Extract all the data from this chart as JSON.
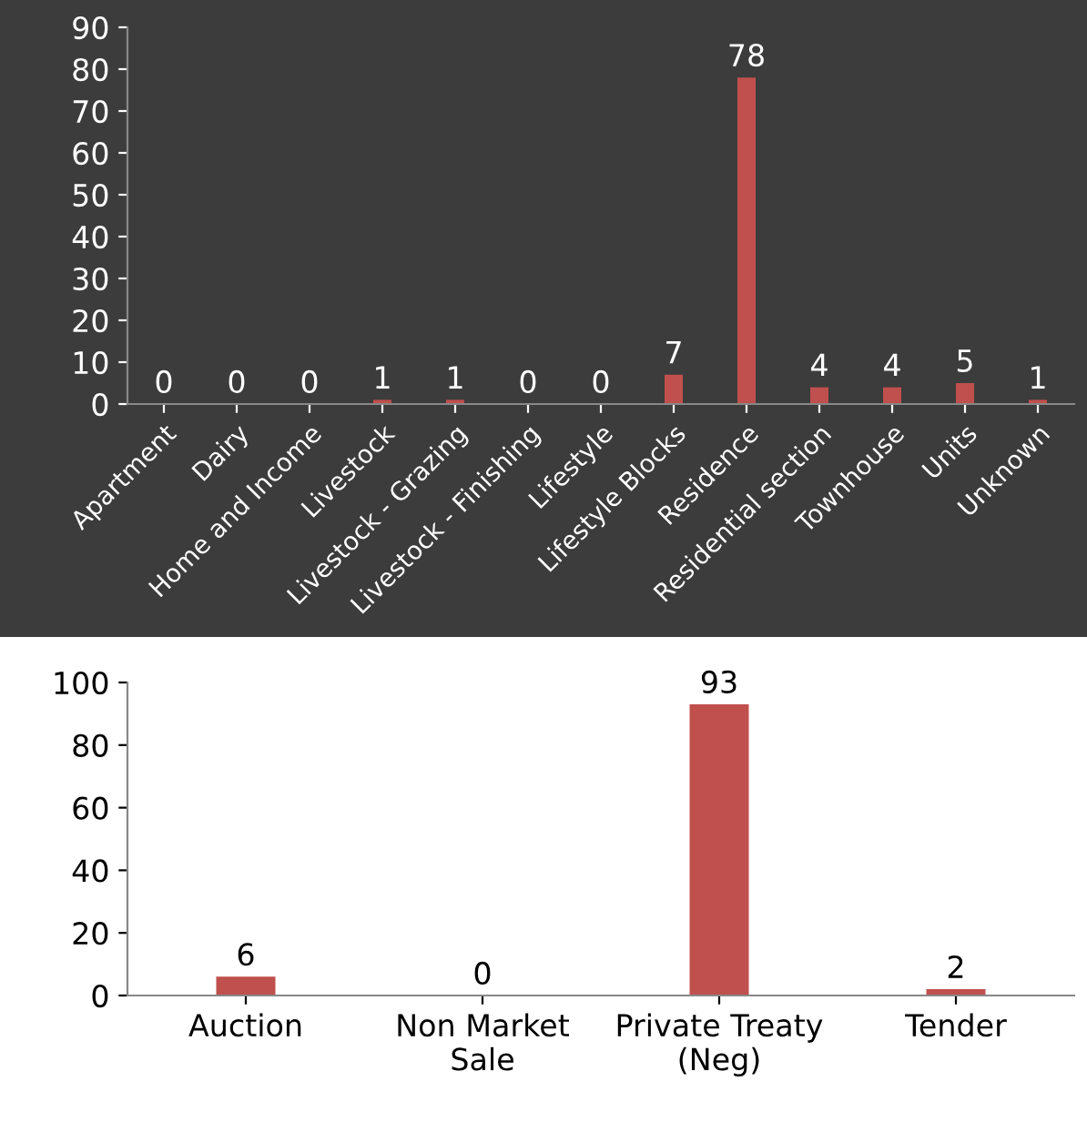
{
  "chart_data": [
    {
      "type": "bar",
      "categories": [
        "Apartment",
        "Dairy",
        "Home and Income",
        "Livestock",
        "Livestock - Grazing",
        "Livestock - Finishing",
        "Lifestyle",
        "Lifestyle Blocks",
        "Residence",
        "Residential section",
        "Townhouse",
        "Units",
        "Unknown"
      ],
      "values": [
        0,
        0,
        0,
        1,
        1,
        0,
        0,
        7,
        78,
        4,
        4,
        5,
        1
      ],
      "color": "#c0504d",
      "ylim": [
        0,
        90
      ],
      "yticks": [
        0,
        10,
        20,
        30,
        40,
        50,
        60,
        70,
        80,
        90
      ],
      "data_labels": true
    },
    {
      "type": "bar",
      "categories": [
        "Auction",
        "Non Market\nSale",
        "Private Treaty\n(Neg)",
        "Tender"
      ],
      "values": [
        6,
        0,
        93,
        2
      ],
      "color": "#c0504d",
      "ylim": [
        0,
        100
      ],
      "yticks": [
        0,
        20,
        40,
        60,
        80,
        100
      ],
      "data_labels": true
    }
  ]
}
